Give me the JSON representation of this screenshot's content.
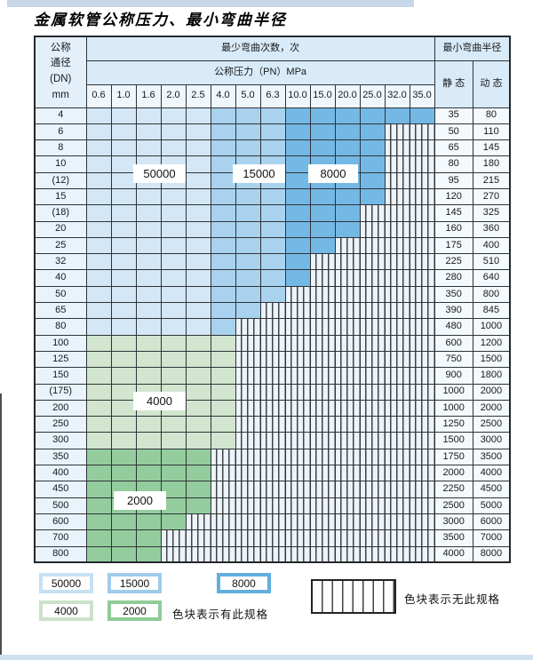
{
  "title": "金属软管公称压力、最小弯曲半径",
  "colors": {
    "c50000": "#d3e7f6",
    "c15000": "#a9d2ee",
    "c8000": "#74b9e5",
    "c4000": "#d2e5cf",
    "c2000": "#94cd9d",
    "hatch_bg": "#edf3f9",
    "grid": "#2e3338",
    "header_bg": "#d9ebf8"
  },
  "table": {
    "header": {
      "dn_label_lines": [
        "公称",
        "通径",
        "(DN)",
        "mm"
      ],
      "bend_cycles_label": "最少弯曲次数，次",
      "pressure_label": "公称压力（PN）MPa",
      "pressures": [
        "0.6",
        "1.0",
        "1.6",
        "2.0",
        "2.5",
        "4.0",
        "5.0",
        "6.3",
        "10.0",
        "15.0",
        "20.0",
        "25.0",
        "32.0",
        "35.0"
      ],
      "radius_label": "最小弯曲半径",
      "static_label": "静 态",
      "dynamic_label": "动 态"
    },
    "rows": [
      {
        "dn": "4",
        "cols": 14,
        "zone": "blue",
        "static": "35",
        "dynamic": "80"
      },
      {
        "dn": "6",
        "cols": 12,
        "zone": "blue",
        "static": "50",
        "dynamic": "110"
      },
      {
        "dn": "8",
        "cols": 12,
        "zone": "blue",
        "static": "65",
        "dynamic": "145"
      },
      {
        "dn": "10",
        "cols": 12,
        "zone": "blue",
        "static": "80",
        "dynamic": "180"
      },
      {
        "dn": "(12)",
        "cols": 12,
        "zone": "blue",
        "static": "95",
        "dynamic": "215"
      },
      {
        "dn": "15",
        "cols": 12,
        "zone": "blue",
        "static": "120",
        "dynamic": "270"
      },
      {
        "dn": "(18)",
        "cols": 11,
        "zone": "blue",
        "static": "145",
        "dynamic": "325"
      },
      {
        "dn": "20",
        "cols": 11,
        "zone": "blue",
        "static": "160",
        "dynamic": "360"
      },
      {
        "dn": "25",
        "cols": 10,
        "zone": "blue",
        "static": "175",
        "dynamic": "400"
      },
      {
        "dn": "32",
        "cols": 9,
        "zone": "blue",
        "static": "225",
        "dynamic": "510"
      },
      {
        "dn": "40",
        "cols": 9,
        "zone": "blue",
        "static": "280",
        "dynamic": "640"
      },
      {
        "dn": "50",
        "cols": 8,
        "zone": "blue",
        "static": "350",
        "dynamic": "800"
      },
      {
        "dn": "65",
        "cols": 7,
        "zone": "blue",
        "static": "390",
        "dynamic": "845"
      },
      {
        "dn": "80",
        "cols": 6,
        "zone": "blue",
        "static": "480",
        "dynamic": "1000"
      },
      {
        "dn": "100",
        "cols": 6,
        "zone": "g4",
        "static": "600",
        "dynamic": "1200"
      },
      {
        "dn": "125",
        "cols": 6,
        "zone": "g4",
        "static": "750",
        "dynamic": "1500"
      },
      {
        "dn": "150",
        "cols": 6,
        "zone": "g4",
        "static": "900",
        "dynamic": "1800"
      },
      {
        "dn": "(175)",
        "cols": 6,
        "zone": "g4",
        "static": "1000",
        "dynamic": "2000"
      },
      {
        "dn": "200",
        "cols": 6,
        "zone": "g4",
        "static": "1000",
        "dynamic": "2000"
      },
      {
        "dn": "250",
        "cols": 6,
        "zone": "g4",
        "static": "1250",
        "dynamic": "2500"
      },
      {
        "dn": "300",
        "cols": 6,
        "zone": "g4",
        "static": "1500",
        "dynamic": "3000"
      },
      {
        "dn": "350",
        "cols": 5,
        "zone": "g2",
        "static": "1750",
        "dynamic": "3500"
      },
      {
        "dn": "400",
        "cols": 5,
        "zone": "g2",
        "static": "2000",
        "dynamic": "4000"
      },
      {
        "dn": "450",
        "cols": 5,
        "zone": "g2",
        "static": "2250",
        "dynamic": "4500"
      },
      {
        "dn": "500",
        "cols": 5,
        "zone": "g2",
        "static": "2500",
        "dynamic": "5000"
      },
      {
        "dn": "600",
        "cols": 4,
        "zone": "g2",
        "static": "3000",
        "dynamic": "6000"
      },
      {
        "dn": "700",
        "cols": 3,
        "zone": "g2",
        "static": "3500",
        "dynamic": "7000"
      },
      {
        "dn": "800",
        "cols": 3,
        "zone": "g2",
        "static": "4000",
        "dynamic": "8000"
      }
    ],
    "zone_labels": {
      "l50000": "50000",
      "l15000": "15000",
      "l8000": "8000",
      "l4000": "4000",
      "l2000": "2000"
    }
  },
  "legend": {
    "box_50000": "50000",
    "box_15000": "15000",
    "box_8000": "8000",
    "box_4000": "4000",
    "box_2000": "2000",
    "has_spec_text": "色块表示有此规格",
    "no_spec_text": "色块表示无此规格"
  }
}
